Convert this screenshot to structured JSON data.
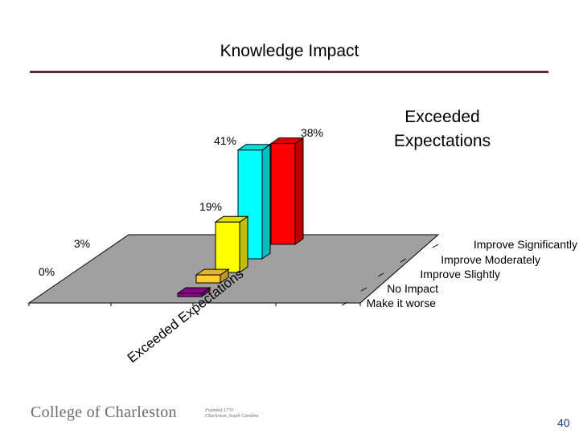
{
  "slide": {
    "title": "Knowledge Impact",
    "page_number": "40",
    "footer": {
      "college_name": "College of Charleston",
      "founded_line1": "Founded 1770",
      "founded_line2": "Charleston, South Carolina"
    }
  },
  "chart_data": {
    "type": "bar",
    "subtype": "3d-column",
    "series_name": "Exceeded Expectations",
    "categories": [
      "Improve Significantly",
      "Improve Moderately",
      "Improve Slightly",
      "No Impact",
      "Make it worse"
    ],
    "values": [
      38,
      41,
      19,
      3,
      0
    ],
    "labels": [
      "38%",
      "41%",
      "19%",
      "3%",
      "0%"
    ],
    "colors": [
      "#ff0000",
      "#00ffff",
      "#ffff00",
      "#ffcc33",
      "#990099"
    ],
    "unit": "%",
    "floor_color": "#a0a0a0",
    "legend_position": "top-right"
  }
}
